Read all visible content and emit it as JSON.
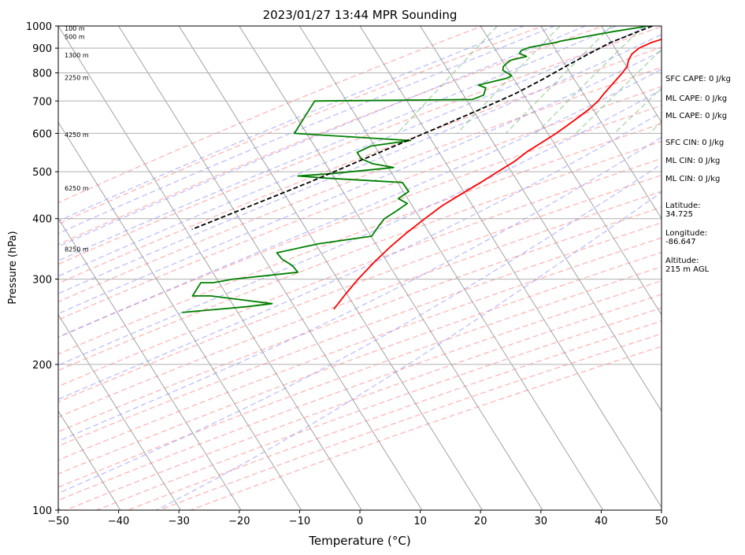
{
  "chart_data": {
    "type": "line",
    "title": "2023/01/27 13:44 MPR Sounding",
    "xlabel": "Temperature (°C)",
    "ylabel": "Pressure (hPa)",
    "xlim": [
      -50,
      50
    ],
    "ylim": [
      1000,
      100
    ],
    "y_scale": "log",
    "grid": true,
    "x_ticks": [
      -50,
      -40,
      -30,
      -20,
      -10,
      0,
      10,
      20,
      30,
      40,
      50
    ],
    "y_ticks": [
      100,
      200,
      300,
      400,
      500,
      600,
      700,
      800,
      900,
      1000
    ],
    "series": [
      {
        "color": "#ff0000",
        "points": [
          [
            0,
            1000
          ],
          [
            1.5,
            975
          ],
          [
            2.2,
            950
          ],
          [
            -0.2,
            925
          ],
          [
            -1.7,
            900
          ],
          [
            -2.3,
            875
          ],
          [
            -2.2,
            850
          ],
          [
            -1.8,
            825
          ],
          [
            -1.9,
            800
          ],
          [
            -2.2,
            775
          ],
          [
            -2.5,
            750
          ],
          [
            -2.8,
            725
          ],
          [
            -3,
            700
          ],
          [
            -3.6,
            675
          ],
          [
            -4.5,
            650
          ],
          [
            -5.5,
            625
          ],
          [
            -6.6,
            600
          ],
          [
            -8,
            575
          ],
          [
            -9.5,
            550
          ],
          [
            -10.6,
            525
          ],
          [
            -12.3,
            500
          ],
          [
            -14,
            475
          ],
          [
            -16,
            450
          ],
          [
            -18,
            425
          ],
          [
            -19.5,
            400
          ],
          [
            -21,
            375
          ],
          [
            -22.3,
            350
          ],
          [
            -23.4,
            325
          ],
          [
            -24.3,
            300
          ],
          [
            -24.8,
            280
          ],
          [
            -25.2,
            260
          ]
        ]
      },
      {
        "color": "#008000",
        "points": [
          [
            -2.5,
            1000
          ],
          [
            -7.5,
            975
          ],
          [
            -12,
            950
          ],
          [
            -15.5,
            930
          ],
          [
            -16,
            925
          ],
          [
            -20,
            903
          ],
          [
            -21,
            890
          ],
          [
            -21,
            878
          ],
          [
            -19.5,
            865
          ],
          [
            -21.7,
            850
          ],
          [
            -22,
            840
          ],
          [
            -22.3,
            825
          ],
          [
            -22,
            810
          ],
          [
            -20,
            790
          ],
          [
            -20.5,
            780
          ],
          [
            -24.5,
            755
          ],
          [
            -23,
            745
          ],
          [
            -22.6,
            720
          ],
          [
            -24,
            705
          ],
          [
            -50,
            700
          ],
          [
            -50,
            600
          ],
          [
            -30,
            580
          ],
          [
            -36,
            565
          ],
          [
            -37.6,
            548
          ],
          [
            -36.3,
            532
          ],
          [
            -34,
            520
          ],
          [
            -30,
            510
          ],
          [
            -40,
            495
          ],
          [
            -45,
            490
          ],
          [
            -40,
            485
          ],
          [
            -27,
            475
          ],
          [
            -25,
            455
          ],
          [
            -26,
            440
          ],
          [
            -24,
            430
          ],
          [
            -25,
            415
          ],
          [
            -26.2,
            400
          ],
          [
            -26.4,
            385
          ],
          [
            -26.5,
            368
          ],
          [
            -34.5,
            355
          ],
          [
            -40.5,
            340
          ],
          [
            -39,
            330
          ],
          [
            -36.6,
            320
          ],
          [
            -35,
            310
          ],
          [
            -45,
            300
          ],
          [
            -48,
            295
          ],
          [
            -50,
            295
          ],
          [
            -50,
            277
          ],
          [
            -47,
            277
          ],
          [
            -36,
            267
          ],
          [
            -40,
            263
          ],
          [
            -50,
            256
          ]
        ]
      },
      {
        "color": "#000000",
        "dashed": true,
        "points": [
          [
            -1.8,
            1000
          ],
          [
            -3.5,
            975
          ],
          [
            -5.2,
            950
          ],
          [
            -7,
            925
          ],
          [
            -9.5,
            875
          ],
          [
            -12,
            825
          ],
          [
            -14.5,
            775
          ],
          [
            -17.5,
            725
          ],
          [
            -21.5,
            675
          ],
          [
            -26,
            625
          ],
          [
            -31,
            575
          ],
          [
            -36.5,
            525
          ],
          [
            -42.5,
            475
          ],
          [
            -50.5,
            420
          ],
          [
            -57,
            380
          ]
        ]
      }
    ],
    "altitude_labels": [
      {
        "label": "100 m",
        "p": 988
      },
      {
        "label": "500 m",
        "p": 950
      },
      {
        "label": "1300 m",
        "p": 870
      },
      {
        "label": "2250 m",
        "p": 782
      },
      {
        "label": "4250 m",
        "p": 596
      },
      {
        "label": "6250 m",
        "p": 462
      },
      {
        "label": "8250 m",
        "p": 346
      }
    ],
    "stats": [
      "SFC CAPE: 0 J/kg",
      "ML CAPE: 0 J/kg",
      "ML CAPE: 0 J/kg",
      "SFC CIN: 0 J/kg",
      "ML CIN: 0 J/kg",
      "ML CIN: 0 J/kg",
      "Latitude:\n34.725",
      "Longitude:\n-86.647",
      "Altitude:\n215 m AGL"
    ],
    "background_lines": {
      "isotherm_color": "#999999",
      "dry_adiabat_color": "#ff6666",
      "moist_adiabat_color": "#7777ff",
      "mixing_ratio_color": "#44aa44"
    }
  }
}
